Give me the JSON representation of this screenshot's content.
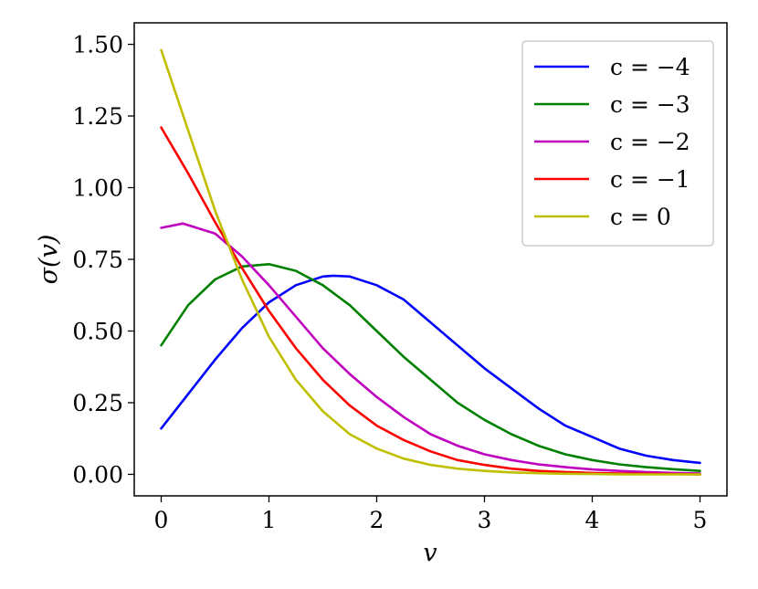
{
  "chart_data": {
    "type": "line",
    "xlabel": "v",
    "ylabel": "σ(v)",
    "xlim": [
      -0.25,
      5.25
    ],
    "ylim": [
      -0.075,
      1.575
    ],
    "xticks": [
      0,
      1,
      2,
      3,
      4,
      5
    ],
    "xtick_labels": [
      "0",
      "1",
      "2",
      "3",
      "4",
      "5"
    ],
    "yticks": [
      0.0,
      0.25,
      0.5,
      0.75,
      1.0,
      1.25,
      1.5
    ],
    "ytick_labels": [
      "0.00",
      "0.25",
      "0.50",
      "0.75",
      "1.00",
      "1.25",
      "1.50"
    ],
    "grid": false,
    "legend_position": "top-right",
    "series": [
      {
        "name": "c = −4",
        "color": "#0000ff",
        "x": [
          0,
          0.25,
          0.5,
          0.75,
          1.0,
          1.25,
          1.5,
          1.6,
          1.75,
          2.0,
          2.25,
          2.5,
          2.75,
          3.0,
          3.25,
          3.5,
          3.75,
          4.0,
          4.25,
          4.5,
          4.75,
          5.0
        ],
        "y": [
          0.16,
          0.28,
          0.4,
          0.51,
          0.6,
          0.66,
          0.69,
          0.693,
          0.69,
          0.66,
          0.61,
          0.53,
          0.45,
          0.37,
          0.3,
          0.23,
          0.17,
          0.13,
          0.09,
          0.065,
          0.05,
          0.04
        ]
      },
      {
        "name": "c = −3",
        "color": "#008000",
        "x": [
          0,
          0.25,
          0.5,
          0.75,
          1.0,
          1.25,
          1.5,
          1.75,
          2.0,
          2.25,
          2.5,
          2.75,
          3.0,
          3.25,
          3.5,
          3.75,
          4.0,
          4.25,
          4.5,
          4.75,
          5.0
        ],
        "y": [
          0.45,
          0.59,
          0.68,
          0.725,
          0.733,
          0.71,
          0.66,
          0.59,
          0.5,
          0.41,
          0.33,
          0.25,
          0.19,
          0.14,
          0.1,
          0.07,
          0.05,
          0.035,
          0.025,
          0.018,
          0.012
        ]
      },
      {
        "name": "c = −2",
        "color": "#bf00bf",
        "x": [
          0,
          0.2,
          0.5,
          0.75,
          1.0,
          1.25,
          1.5,
          1.75,
          2.0,
          2.25,
          2.5,
          2.75,
          3.0,
          3.25,
          3.5,
          3.75,
          4.0,
          4.25,
          4.5,
          4.75,
          5.0
        ],
        "y": [
          0.86,
          0.875,
          0.84,
          0.76,
          0.66,
          0.55,
          0.44,
          0.35,
          0.27,
          0.2,
          0.14,
          0.1,
          0.07,
          0.05,
          0.035,
          0.025,
          0.017,
          0.012,
          0.008,
          0.005,
          0.003
        ]
      },
      {
        "name": "c = −1",
        "color": "#ff0000",
        "x": [
          0,
          0.25,
          0.5,
          0.75,
          1.0,
          1.25,
          1.5,
          1.75,
          2.0,
          2.25,
          2.5,
          2.75,
          3.0,
          3.25,
          3.5,
          3.75,
          4.0,
          4.25,
          4.5,
          4.75,
          5.0
        ],
        "y": [
          1.21,
          1.05,
          0.88,
          0.72,
          0.57,
          0.44,
          0.33,
          0.24,
          0.17,
          0.12,
          0.08,
          0.05,
          0.033,
          0.02,
          0.012,
          0.008,
          0.005,
          0.003,
          0.002,
          0.001,
          0.0
        ]
      },
      {
        "name": "c = 0",
        "color": "#bfbf00",
        "x": [
          0,
          0.25,
          0.5,
          0.75,
          1.0,
          1.25,
          1.5,
          1.75,
          2.0,
          2.25,
          2.5,
          2.75,
          3.0,
          3.25,
          3.5,
          3.75,
          4.0,
          4.25,
          4.5,
          4.75,
          5.0
        ],
        "y": [
          1.48,
          1.2,
          0.92,
          0.68,
          0.48,
          0.33,
          0.22,
          0.14,
          0.09,
          0.055,
          0.033,
          0.02,
          0.012,
          0.007,
          0.004,
          0.002,
          0.001,
          0.0,
          0.0,
          0.0,
          0.0
        ]
      }
    ]
  }
}
